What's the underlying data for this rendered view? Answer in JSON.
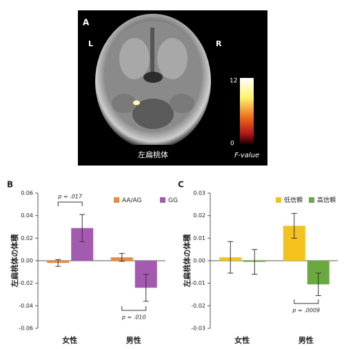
{
  "panel_a": {
    "label": "A",
    "left": "L",
    "right": "R",
    "caption": "左扁桃体",
    "colorbar_max": 12,
    "colorbar_min": 0,
    "colorbar_label": "F-value"
  },
  "chart_data": [
    {
      "type": "bar",
      "panel_label": "B",
      "y_label": "左扁桃体の体積",
      "categories": [
        "女性",
        "男性"
      ],
      "series": [
        {
          "name": "AA/AG",
          "color": "#ee8a3a",
          "values": [
            -0.002,
            0.003
          ],
          "errors": [
            0.003,
            0.0035
          ]
        },
        {
          "name": "GG",
          "color": "#a35bb0",
          "values": [
            0.029,
            -0.024
          ],
          "errors": [
            0.012,
            0.012
          ]
        }
      ],
      "ylim": [
        -0.06,
        0.06
      ],
      "yticks": [
        0.06,
        0.04,
        0.02,
        {
          "value": 0,
          "label": "0.00"
        },
        -0.02,
        -0.04,
        -0.06
      ],
      "annotations": [
        "p = .017",
        "p = .010"
      ]
    },
    {
      "type": "bar",
      "panel_label": "C",
      "y_label": "左扁桃体の体積",
      "categories": [
        "女性",
        "男性"
      ],
      "series": [
        {
          "name": "低信頼",
          "color": "#f3c21c",
          "values": [
            0.0015,
            0.0155
          ],
          "errors": [
            0.007,
            0.0055
          ]
        },
        {
          "name": "高信頼",
          "color": "#6aa940",
          "values": [
            -0.0005,
            -0.0105
          ],
          "errors": [
            0.0055,
            0.005
          ]
        }
      ],
      "ylim": [
        -0.03,
        0.03
      ],
      "yticks": [
        0.03,
        0.02,
        0.01,
        {
          "value": 0,
          "label": "0.00"
        },
        -0.01,
        -0.02,
        -0.03
      ],
      "annotations": [
        "p = .0009"
      ]
    }
  ]
}
